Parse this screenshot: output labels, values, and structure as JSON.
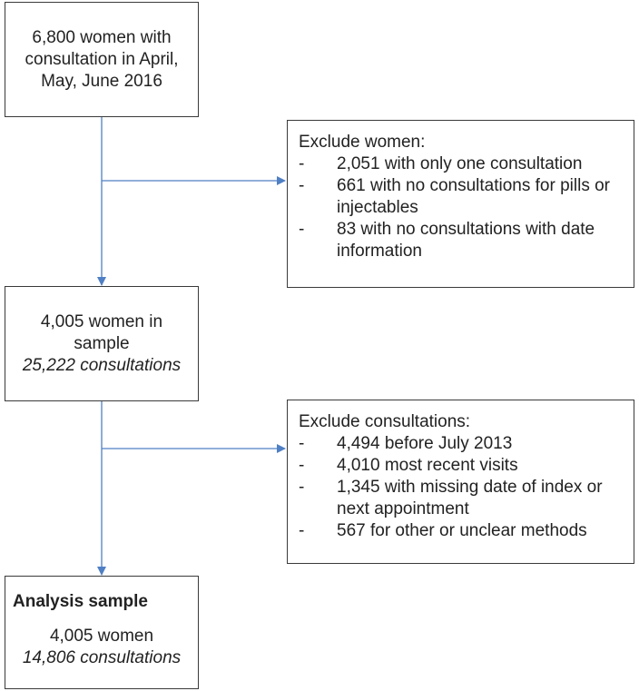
{
  "box_start": {
    "text": "6,800 women with consultation in April, May, June 2016"
  },
  "box_exclude_women": {
    "title": "Exclude women:",
    "bullet": "-",
    "items": [
      "2,051 with only one consultation",
      "661 with no consultations for pills or injectables",
      "83 with no consultations with date information"
    ]
  },
  "box_sample": {
    "line1": "4,005 women in sample",
    "line2": "25,222 consultations"
  },
  "box_exclude_consultations": {
    "title": "Exclude consultations:",
    "bullet": "-",
    "items": [
      "4,494 before July 2013",
      "4,010 most recent visits",
      "1,345 with missing date of index or next appointment",
      "567 for other or unclear methods"
    ]
  },
  "box_analysis": {
    "title": "Analysis sample",
    "line1": "4,005 women",
    "line2": "14,806 consultations"
  },
  "colors": {
    "connector": "#4f7fc4",
    "border": "#3a3a3a"
  }
}
